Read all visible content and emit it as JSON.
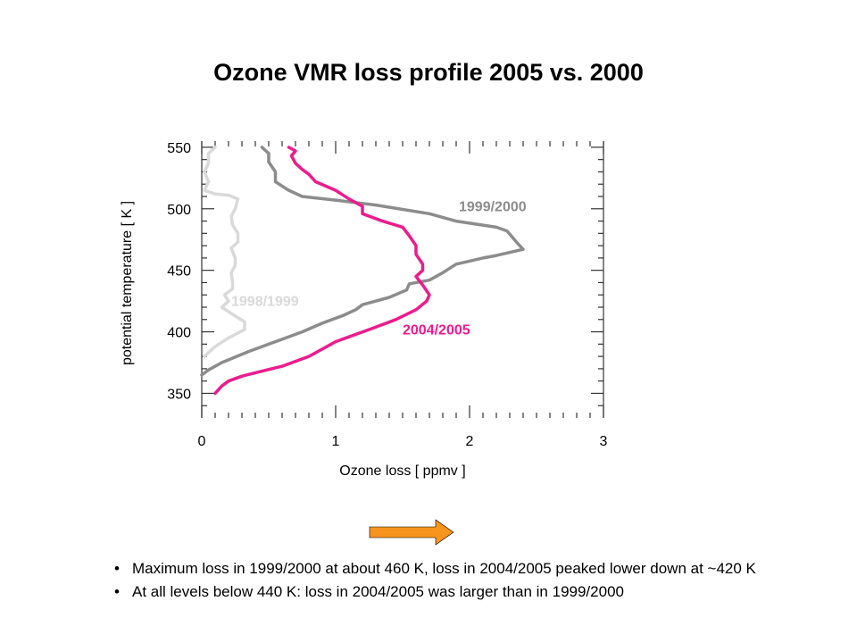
{
  "slide": {
    "title": "Ozone VMR loss profile 2005 vs. 2000",
    "bullets": [
      "Maximum loss in 1999/2000 at about 460 K, loss in 2004/2005 peaked lower down at  ~420 K",
      "At all levels below 440 K: loss in 2004/2005 was larger than in 1999/2000"
    ],
    "arrow_color": "#f7941d"
  },
  "chart_data": {
    "type": "line",
    "title": "Ozone VMR loss profile 2005 vs. 2000",
    "xlabel": "Ozone loss [ ppmv ]",
    "ylabel": "potential temperature [ K ]",
    "xlim": [
      0,
      3
    ],
    "ylim": [
      330,
      555
    ],
    "xticks": [
      0,
      1,
      2,
      3
    ],
    "yticks": [
      350,
      400,
      450,
      500,
      550
    ],
    "grid": false,
    "series": [
      {
        "name": "1998/1999",
        "color": "#d9d9d9",
        "points": [
          [
            0.1,
            550
          ],
          [
            0.05,
            545
          ],
          [
            0.05,
            537
          ],
          [
            0.02,
            530
          ],
          [
            0.05,
            522
          ],
          [
            0.02,
            515
          ],
          [
            0.1,
            512
          ],
          [
            0.2,
            511
          ],
          [
            0.27,
            508
          ],
          [
            0.25,
            500
          ],
          [
            0.22,
            494
          ],
          [
            0.23,
            487
          ],
          [
            0.27,
            480
          ],
          [
            0.27,
            473
          ],
          [
            0.22,
            468
          ],
          [
            0.25,
            460
          ],
          [
            0.25,
            454
          ],
          [
            0.22,
            448
          ],
          [
            0.23,
            440
          ],
          [
            0.23,
            435
          ],
          [
            0.17,
            430
          ],
          [
            0.2,
            425
          ],
          [
            0.15,
            420
          ],
          [
            0.22,
            415
          ],
          [
            0.32,
            408
          ],
          [
            0.32,
            402
          ],
          [
            0.2,
            395
          ],
          [
            0.1,
            388
          ],
          [
            0.02,
            380
          ]
        ]
      },
      {
        "name": "1999/2000",
        "color": "#8c8c8c",
        "points": [
          [
            0.45,
            550
          ],
          [
            0.5,
            545
          ],
          [
            0.5,
            538
          ],
          [
            0.55,
            530
          ],
          [
            0.55,
            522
          ],
          [
            0.65,
            515
          ],
          [
            0.75,
            510
          ],
          [
            1.0,
            507
          ],
          [
            1.3,
            503
          ],
          [
            1.7,
            496
          ],
          [
            1.9,
            490
          ],
          [
            2.2,
            485
          ],
          [
            2.28,
            482
          ],
          [
            2.35,
            473
          ],
          [
            2.4,
            467
          ],
          [
            2.2,
            462
          ],
          [
            2.1,
            460
          ],
          [
            1.9,
            455
          ],
          [
            1.8,
            448
          ],
          [
            1.7,
            442
          ],
          [
            1.55,
            439
          ],
          [
            1.53,
            434
          ],
          [
            1.4,
            428
          ],
          [
            1.2,
            422
          ],
          [
            1.15,
            418
          ],
          [
            1.05,
            413
          ],
          [
            0.9,
            407
          ],
          [
            0.75,
            400
          ],
          [
            0.55,
            392
          ],
          [
            0.35,
            384
          ],
          [
            0.15,
            375
          ],
          [
            0.05,
            369
          ],
          [
            0.0,
            365
          ]
        ]
      },
      {
        "name": "2004/2005",
        "color": "#ec1c8c",
        "points": [
          [
            0.65,
            550
          ],
          [
            0.7,
            547
          ],
          [
            0.67,
            543
          ],
          [
            0.7,
            537
          ],
          [
            0.75,
            532
          ],
          [
            0.8,
            528
          ],
          [
            0.85,
            522
          ],
          [
            1.0,
            515
          ],
          [
            1.1,
            508
          ],
          [
            1.2,
            502
          ],
          [
            1.2,
            496
          ],
          [
            1.35,
            490
          ],
          [
            1.5,
            485
          ],
          [
            1.55,
            478
          ],
          [
            1.6,
            470
          ],
          [
            1.6,
            463
          ],
          [
            1.65,
            455
          ],
          [
            1.65,
            450
          ],
          [
            1.6,
            445
          ],
          [
            1.65,
            438
          ],
          [
            1.7,
            430
          ],
          [
            1.68,
            425
          ],
          [
            1.6,
            418
          ],
          [
            1.45,
            410
          ],
          [
            1.28,
            403
          ],
          [
            1.0,
            392
          ],
          [
            0.8,
            380
          ],
          [
            0.6,
            372
          ],
          [
            0.45,
            368
          ],
          [
            0.3,
            364
          ],
          [
            0.2,
            360
          ],
          [
            0.15,
            356
          ],
          [
            0.1,
            350
          ]
        ]
      }
    ]
  }
}
